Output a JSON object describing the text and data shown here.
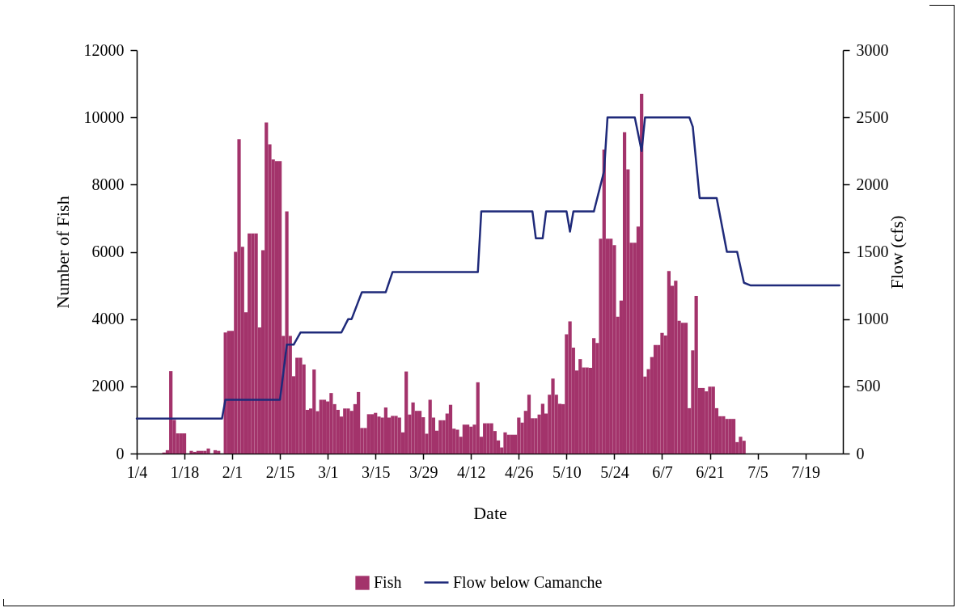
{
  "chart_data": {
    "type": "bar",
    "xlabel": "Date",
    "ylabel": "Number of Fish",
    "y2label": "Flow (cfs)",
    "xlim": [
      "--01-04",
      "--07-30"
    ],
    "xticks": [
      {
        "value": "--01-04",
        "label": "1/4"
      },
      {
        "value": "--01-18",
        "label": "1/18"
      },
      {
        "value": "--02-01",
        "label": "2/1"
      },
      {
        "value": "--02-15",
        "label": "2/15"
      },
      {
        "value": "--03-01",
        "label": "3/1"
      },
      {
        "value": "--03-15",
        "label": "3/15"
      },
      {
        "value": "--03-29",
        "label": "3/29"
      },
      {
        "value": "--04-12",
        "label": "4/12"
      },
      {
        "value": "--04-26",
        "label": "4/26"
      },
      {
        "value": "--05-10",
        "label": "5/10"
      },
      {
        "value": "--05-24",
        "label": "5/24"
      },
      {
        "value": "--06-07",
        "label": "6/7"
      },
      {
        "value": "--06-21",
        "label": "6/21"
      },
      {
        "value": "--07-05",
        "label": "7/5"
      },
      {
        "value": "--07-19",
        "label": "7/19"
      }
    ],
    "ylim": [
      0,
      12000
    ],
    "yticks": [
      0,
      2000,
      4000,
      6000,
      8000,
      10000,
      12000
    ],
    "y2lim": [
      0,
      3000
    ],
    "y2ticks": [
      0,
      500,
      1000,
      1500,
      2000,
      2500,
      3000
    ],
    "legend": "bottom",
    "series": [
      {
        "name": "Fish",
        "color": "#a3336b",
        "x": [
          "--01-12",
          "--01-13",
          "--01-14",
          "--01-15",
          "--01-16",
          "--01-17",
          "--01-18",
          "--01-19",
          "--01-20",
          "--01-21",
          "--01-22",
          "--01-23",
          "--01-24",
          "--01-25",
          "--01-26",
          "--01-27",
          "--01-28",
          "--01-29",
          "--01-30",
          "--01-31",
          "--02-01",
          "--02-02",
          "--02-03",
          "--02-04",
          "--02-05",
          "--02-06",
          "--02-07",
          "--02-08",
          "--02-09",
          "--02-10",
          "--02-11",
          "--02-12",
          "--02-13",
          "--02-14",
          "--02-15",
          "--02-16",
          "--02-17",
          "--02-18",
          "--02-19",
          "--02-20",
          "--02-21",
          "--02-22",
          "--02-23",
          "--02-24",
          "--02-25",
          "--02-26",
          "--02-27",
          "--02-28",
          "--03-01",
          "--03-02",
          "--03-03",
          "--03-04",
          "--03-05",
          "--03-06",
          "--03-07",
          "--03-08",
          "--03-09",
          "--03-10",
          "--03-11",
          "--03-12",
          "--03-13",
          "--03-14",
          "--03-15",
          "--03-16",
          "--03-17",
          "--03-18",
          "--03-19",
          "--03-20",
          "--03-21",
          "--03-22",
          "--03-23",
          "--03-24",
          "--03-25",
          "--03-26",
          "--03-27",
          "--03-28",
          "--03-29",
          "--03-30",
          "--03-31",
          "--04-01",
          "--04-02",
          "--04-03",
          "--04-04",
          "--04-05",
          "--04-06",
          "--04-07",
          "--04-08",
          "--04-09",
          "--04-10",
          "--04-11",
          "--04-12",
          "--04-13",
          "--04-14",
          "--04-15",
          "--04-16",
          "--04-17",
          "--04-18",
          "--04-19",
          "--04-20",
          "--04-21",
          "--04-22",
          "--04-23",
          "--04-24",
          "--04-25",
          "--04-26",
          "--04-27",
          "--04-28",
          "--04-29",
          "--04-30",
          "--05-01",
          "--05-02",
          "--05-03",
          "--05-04",
          "--05-05",
          "--05-06",
          "--05-07",
          "--05-08",
          "--05-09",
          "--05-10",
          "--05-11",
          "--05-12",
          "--05-13",
          "--05-14",
          "--05-15",
          "--05-16",
          "--05-17",
          "--05-18",
          "--05-19",
          "--05-20",
          "--05-21",
          "--05-22",
          "--05-23",
          "--05-24",
          "--05-25",
          "--05-26",
          "--05-27",
          "--05-28",
          "--05-29",
          "--05-30",
          "--05-31",
          "--06-01",
          "--06-02",
          "--06-03",
          "--06-04",
          "--06-05",
          "--06-06",
          "--06-07",
          "--06-08",
          "--06-09",
          "--06-10",
          "--06-11",
          "--06-12",
          "--06-13",
          "--06-14",
          "--06-15",
          "--06-16",
          "--06-17",
          "--06-18",
          "--06-19",
          "--06-20",
          "--06-21",
          "--06-22",
          "--06-23",
          "--06-24",
          "--06-25",
          "--06-26",
          "--06-27",
          "--06-28",
          "--06-29",
          "--06-30",
          "--07-01"
        ],
        "values": [
          30,
          100,
          2450,
          1000,
          600,
          600,
          600,
          0,
          80,
          50,
          80,
          80,
          80,
          150,
          0,
          100,
          80,
          0,
          3600,
          3650,
          3650,
          6000,
          9350,
          6150,
          4200,
          6550,
          6550,
          6550,
          3750,
          6050,
          9850,
          9200,
          8750,
          8700,
          8700,
          3500,
          7200,
          3500,
          2300,
          2850,
          2850,
          2650,
          1300,
          1340,
          2500,
          1260,
          1600,
          1600,
          1550,
          1800,
          1470,
          1300,
          1100,
          1340,
          1340,
          1270,
          1470,
          1830,
          760,
          760,
          1170,
          1170,
          1210,
          1100,
          1070,
          1370,
          1070,
          1120,
          1120,
          1070,
          630,
          2440,
          1160,
          1520,
          1270,
          1270,
          1080,
          590,
          1600,
          1070,
          680,
          990,
          990,
          1190,
          1450,
          740,
          710,
          500,
          860,
          860,
          800,
          860,
          2120,
          500,
          900,
          900,
          900,
          670,
          390,
          180,
          630,
          560,
          560,
          560,
          1070,
          920,
          1270,
          1750,
          1050,
          1050,
          1160,
          1480,
          1190,
          1750,
          2230,
          1750,
          1480,
          1470,
          3550,
          3930,
          3150,
          2470,
          2810,
          2560,
          2560,
          2550,
          3430,
          3290,
          6390,
          9040,
          6390,
          6390,
          6200,
          4070,
          4550,
          9560,
          8450,
          6270,
          6270,
          6750,
          10700,
          2290,
          2510,
          2870,
          3230,
          3230,
          3590,
          3510,
          5430,
          4990,
          5140,
          3950,
          3890,
          3890,
          1350,
          3070,
          4690,
          1950,
          1950,
          1850,
          1990,
          1990,
          1350,
          1110,
          1110,
          1030,
          1030,
          1030,
          340,
          500,
          380
        ]
      },
      {
        "name": "Flow below Camanche",
        "type": "line",
        "axis": "y2",
        "color": "#1f2a7a",
        "x": [
          "--01-04",
          "--01-29",
          "--01-30",
          "--02-15",
          "--02-17",
          "--02-19",
          "--02-21",
          "--03-05",
          "--03-07",
          "--03-08",
          "--03-11",
          "--03-18",
          "--03-20",
          "--04-14",
          "--04-15",
          "--04-30",
          "--05-01",
          "--05-03",
          "--05-04",
          "--05-10",
          "--05-11",
          "--05-12",
          "--05-18",
          "--05-21",
          "--05-22",
          "--05-30",
          "--06-01",
          "--06-02",
          "--06-15",
          "--06-16",
          "--06-18",
          "--06-23",
          "--06-26",
          "--06-29",
          "--07-01",
          "--07-03",
          "--07-29"
        ],
        "values": [
          260,
          260,
          400,
          400,
          810,
          810,
          900,
          900,
          1000,
          1000,
          1200,
          1200,
          1350,
          1350,
          1800,
          1800,
          1600,
          1600,
          1800,
          1800,
          1650,
          1800,
          1800,
          2100,
          2500,
          2500,
          2250,
          2500,
          2500,
          2430,
          1900,
          1900,
          1500,
          1500,
          1270,
          1250,
          1250
        ]
      }
    ]
  }
}
